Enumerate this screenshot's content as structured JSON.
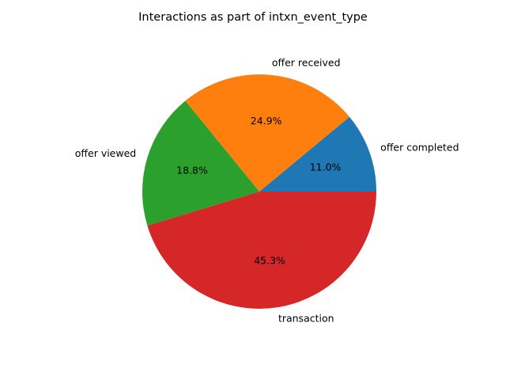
{
  "chart_data": {
    "type": "pie",
    "title": "Interactions as part of intxn_event_type",
    "categories": [
      "offer completed",
      "offer received",
      "offer viewed",
      "transaction"
    ],
    "values": [
      11.0,
      24.9,
      18.8,
      45.3
    ],
    "percent_labels": [
      "11.0%",
      "24.9%",
      "18.8%",
      "45.3%"
    ],
    "colors": [
      "#1f77b4",
      "#ff7f0e",
      "#2ca02c",
      "#d62728"
    ],
    "start_angle_deg": 0,
    "direction": "counterclockwise",
    "legend": "none"
  }
}
